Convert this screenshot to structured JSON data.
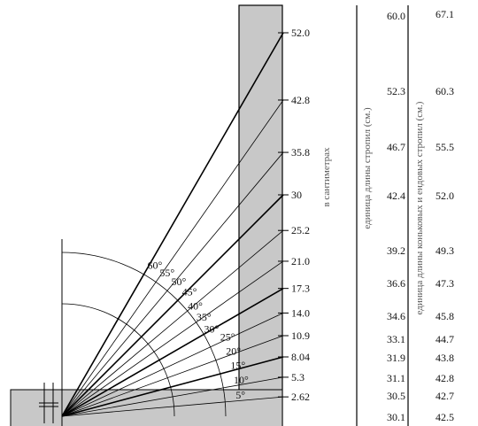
{
  "scale_unit_label": "в сантиметрах",
  "rafter_column_label": "единица длины стропил (см.)",
  "hip_column_label": "единица длины коньковых и ендовых стропил (см.)",
  "angles": [
    5,
    10,
    15,
    20,
    25,
    30,
    35,
    40,
    45,
    50,
    55,
    60
  ],
  "degree_symbol": "°",
  "scale_ticks": [
    "52.0",
    "42.8",
    "35.8",
    "30",
    "25.2",
    "21.0",
    "17.3",
    "14.0",
    "10.9",
    "8.04",
    "5.3",
    "2.62"
  ],
  "rafter_lengths": [
    "60.0",
    "52.3",
    "46.7",
    "42.4",
    "39.2",
    "36.6",
    "34.6",
    "33.1",
    "31.9",
    "31.1",
    "30.5",
    "30.1"
  ],
  "hip_lengths": [
    "67.1",
    "60.3",
    "55.5",
    "52.0",
    "49.3",
    "47.3",
    "45.8",
    "44.7",
    "43.8",
    "42.8",
    "42.7",
    "42.5"
  ],
  "colors": {
    "shaded_band": "#c8c8c8",
    "line": "#000000"
  }
}
